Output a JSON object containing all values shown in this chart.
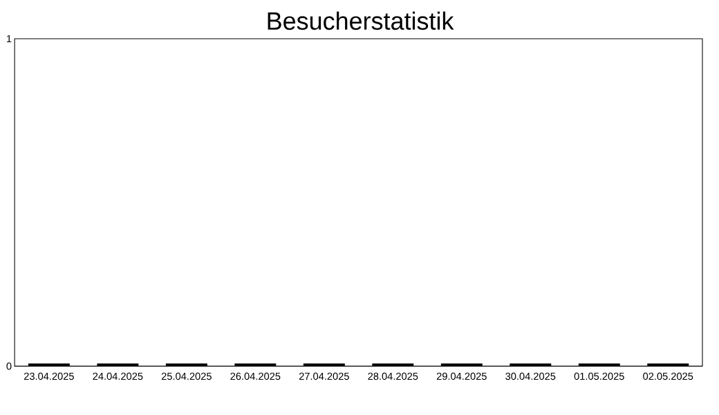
{
  "chart_data": {
    "type": "bar",
    "title": "Besucherstatistik",
    "categories": [
      "23.04.2025",
      "24.04.2025",
      "25.04.2025",
      "26.04.2025",
      "27.04.2025",
      "28.04.2025",
      "29.04.2025",
      "30.04.2025",
      "01.05.2025",
      "02.05.2025"
    ],
    "values": [
      0,
      0,
      0,
      0,
      0,
      0,
      0,
      0,
      0,
      0
    ],
    "color": "#000000",
    "ylim": [
      0,
      1
    ],
    "yticks": [
      0,
      1
    ],
    "grid": false
  }
}
